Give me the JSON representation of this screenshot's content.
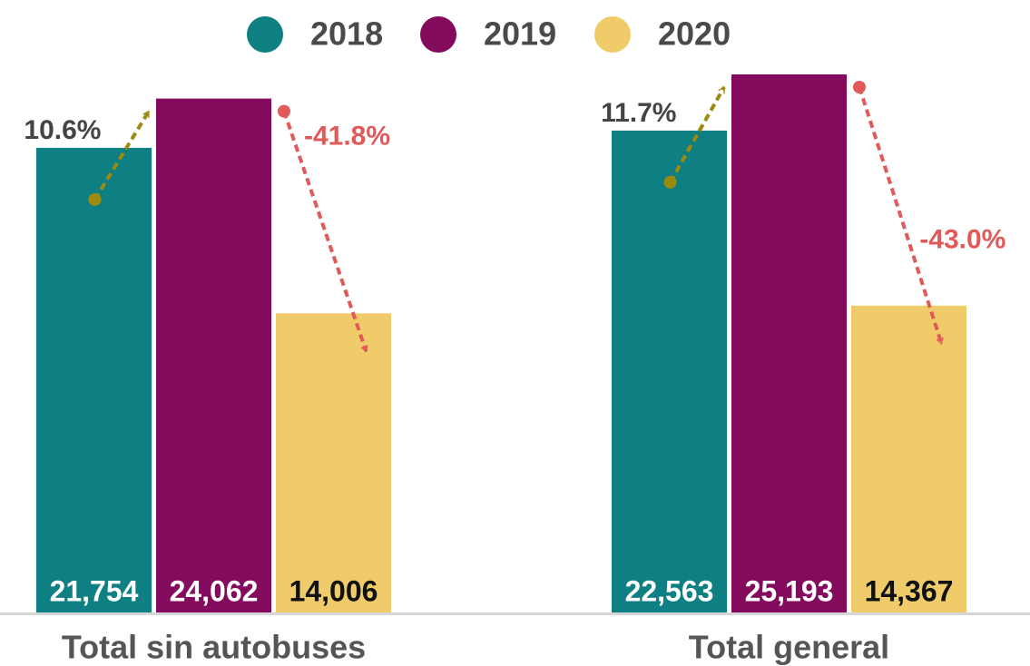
{
  "chart_data": {
    "type": "bar",
    "categories": [
      "Total sin autobuses",
      "Total general"
    ],
    "series": [
      {
        "name": "2018",
        "color": "#0e7f82",
        "values": [
          21754,
          22563
        ],
        "value_labels": [
          "21,754",
          "22,563"
        ]
      },
      {
        "name": "2019",
        "color": "#830a5c",
        "values": [
          24062,
          25193
        ],
        "value_labels": [
          "24,062",
          "25,193"
        ]
      },
      {
        "name": "2020",
        "color": "#efcb6a",
        "values": [
          14006,
          14367
        ],
        "value_labels": [
          "14,006",
          "14,367"
        ]
      }
    ],
    "annotations": [
      [
        "10.6%",
        "-41.8%"
      ],
      [
        "11.7%",
        "-43.0%"
      ]
    ],
    "legend": "top"
  }
}
